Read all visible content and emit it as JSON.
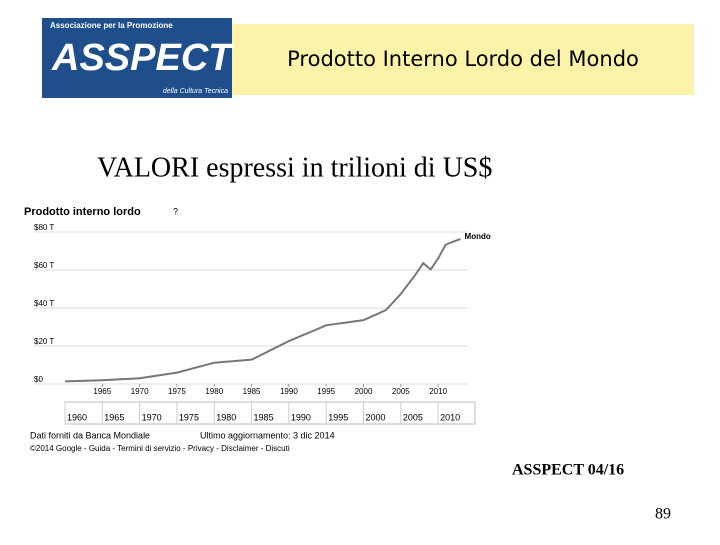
{
  "header": {
    "title": "Prodotto Interno Lordo del Mondo",
    "logo": {
      "top": "Associazione per la Promozione",
      "name": "ASSPECT",
      "bottom": "della Cultura Tecnica"
    }
  },
  "subtitle": "VALORI espressi in trilioni di US$",
  "chart_data": {
    "type": "line",
    "title": "Prodotto interno lordo",
    "help": "?",
    "x": [
      1960,
      1965,
      1970,
      1975,
      1980,
      1985,
      1990,
      1995,
      2000,
      2003,
      2005,
      2007,
      2008,
      2009,
      2010,
      2011,
      2012,
      2013
    ],
    "series": [
      {
        "name": "Mondo",
        "color": "#777777",
        "values": [
          1.4,
          2.0,
          3.0,
          6.0,
          11.2,
          12.8,
          22.6,
          30.9,
          33.6,
          38.9,
          47.4,
          57.8,
          63.6,
          60.3,
          66.1,
          73.3,
          74.9,
          76.3
        ]
      }
    ],
    "xlim": [
      1960,
      2014
    ],
    "ylim": [
      0,
      80
    ],
    "xticks": [
      1965,
      1970,
      1975,
      1980,
      1985,
      1990,
      1995,
      2000,
      2005,
      2010
    ],
    "yticks": [
      {
        "value": 0,
        "label": "$0"
      },
      {
        "value": 20,
        "label": "$20 T"
      },
      {
        "value": 40,
        "label": "$40 T"
      },
      {
        "value": 60,
        "label": "$60 T"
      },
      {
        "value": 80,
        "label": "$80 T"
      }
    ],
    "range_ticks": [
      1960,
      1965,
      1970,
      1975,
      1980,
      1985,
      1990,
      1995,
      2000,
      2005,
      2010
    ],
    "grid": true,
    "source": "Dati forniti da Banca Mondiale",
    "updated": "Ultimo aggiornamento: 3 dic 2014",
    "credits": "©2014 Google - Guida - Termini di servizio - Privacy - Disclaimer - Discuti"
  },
  "footer": {
    "label": "ASSPECT 04/16",
    "page": "89"
  }
}
